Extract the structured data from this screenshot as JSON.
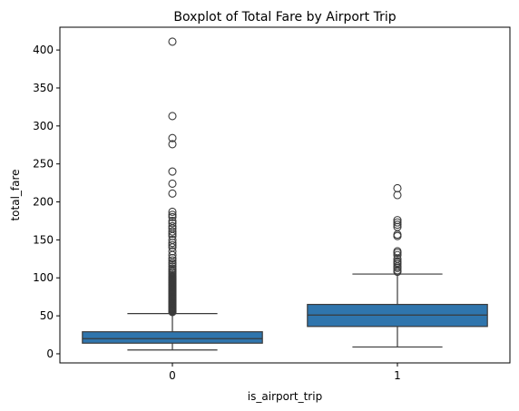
{
  "chart_data": {
    "type": "box",
    "title": "Boxplot of Total Fare by Airport Trip",
    "xlabel": "is_airport_trip",
    "ylabel": "total_fare",
    "categories": [
      "0",
      "1"
    ],
    "ylim": [
      -12,
      430
    ],
    "yticks": [
      0,
      50,
      100,
      150,
      200,
      250,
      300,
      350,
      400
    ],
    "box_color": "#2f75ad",
    "edge_color": "#3a3a3a",
    "boxes": [
      {
        "category": "0",
        "whisker_low": 5,
        "q1": 14,
        "median": 20,
        "q3": 29,
        "whisker_high": 53,
        "outliers": [
          55,
          56,
          57,
          58,
          59,
          60,
          61,
          62,
          63,
          64,
          65,
          66,
          67,
          68,
          69,
          70,
          71,
          72,
          73,
          74,
          75,
          76,
          77,
          78,
          79,
          80,
          81,
          82,
          83,
          84,
          85,
          86,
          87,
          88,
          89,
          90,
          91,
          92,
          93,
          94,
          95,
          96,
          97,
          98,
          99,
          100,
          101,
          102,
          104,
          106,
          108,
          110,
          112,
          115,
          118,
          120,
          123,
          126,
          130,
          135,
          140,
          143,
          146,
          150,
          155,
          158,
          161,
          165,
          168,
          172,
          175,
          180,
          183,
          187,
          211,
          224,
          240,
          276,
          284,
          313,
          411
        ]
      },
      {
        "category": "1",
        "whisker_low": 9,
        "q1": 36,
        "median": 51,
        "q3": 65,
        "whisker_high": 105,
        "outliers": [
          108,
          110,
          113,
          115,
          118,
          120,
          122,
          125,
          130,
          133,
          135,
          155,
          157,
          167,
          170,
          173,
          176,
          209,
          218
        ]
      }
    ]
  }
}
